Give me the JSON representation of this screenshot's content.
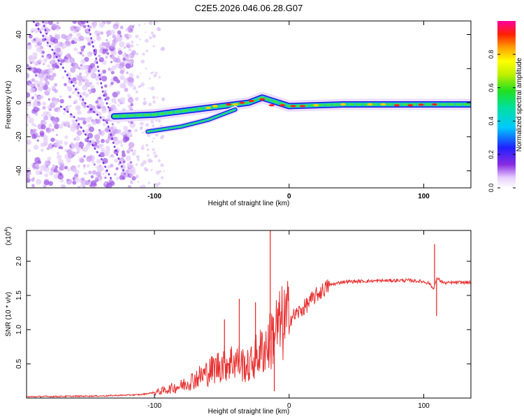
{
  "title": "C2E5.2026.046.06.28.G07",
  "chart_data": [
    {
      "type": "heatmap",
      "name": "spectrogram",
      "xlabel": "Height of straight line (km)",
      "ylabel": "Frequency (Hz)",
      "xlim": [
        -195,
        135
      ],
      "ylim": [
        -50,
        48
      ],
      "xticks": [
        -100,
        0,
        100
      ],
      "yticks": [
        -40,
        -20,
        0,
        20,
        40
      ],
      "colorbar": {
        "label": "Normalized spectral amplitude",
        "range": [
          0,
          1
        ],
        "ticks": [
          "0.0",
          "0.2",
          "0.4",
          "0.6",
          "0.8"
        ]
      },
      "features": [
        {
          "name": "main ridge",
          "x": [
            -130,
            -100,
            -60,
            -30,
            -20,
            0,
            40,
            100,
            135
          ],
          "y": [
            -8,
            -7,
            -3,
            0,
            3,
            -2,
            -1,
            -1,
            -1
          ]
        },
        {
          "name": "secondary ridge",
          "x": [
            -105,
            -80,
            -60,
            -40
          ],
          "y": [
            -17,
            -14,
            -10,
            -4
          ]
        }
      ]
    },
    {
      "type": "line",
      "name": "snr",
      "xlabel": "Height of straight line (km)",
      "ylabel": "SNR (10 * v/v)",
      "multiplier": "(x10",
      "multiplier_exp": "4",
      "xlim": [
        -195,
        135
      ],
      "ylim": [
        0,
        2.45
      ],
      "xticks": [
        -100,
        0,
        100
      ],
      "yticks": [
        "0.5",
        "1.0",
        "1.5",
        "2.0"
      ],
      "color": "#e83030",
      "series": [
        {
          "name": "SNR",
          "x": [
            -195,
            -140,
            -110,
            -95,
            -80,
            -70,
            -60,
            -50,
            -40,
            -30,
            -25,
            -20,
            -15,
            -10,
            0,
            10,
            20,
            30,
            40,
            60,
            80,
            90,
            100,
            104,
            107,
            110,
            115,
            125,
            135
          ],
          "y": [
            0.02,
            0.03,
            0.05,
            0.1,
            0.18,
            0.28,
            0.38,
            0.5,
            0.55,
            0.45,
            0.6,
            0.7,
            0.8,
            1.0,
            1.15,
            1.3,
            1.5,
            1.65,
            1.7,
            1.71,
            1.72,
            1.72,
            1.7,
            1.68,
            1.6,
            1.75,
            1.68,
            1.69,
            1.69
          ]
        },
        {
          "name": "SNR spikes",
          "x": [
            -48,
            -37,
            -25,
            -14,
            -11,
            108,
            109.5
          ],
          "y": [
            1.15,
            1.45,
            1.4,
            2.45,
            0.1,
            2.25,
            1.2
          ]
        }
      ]
    }
  ]
}
